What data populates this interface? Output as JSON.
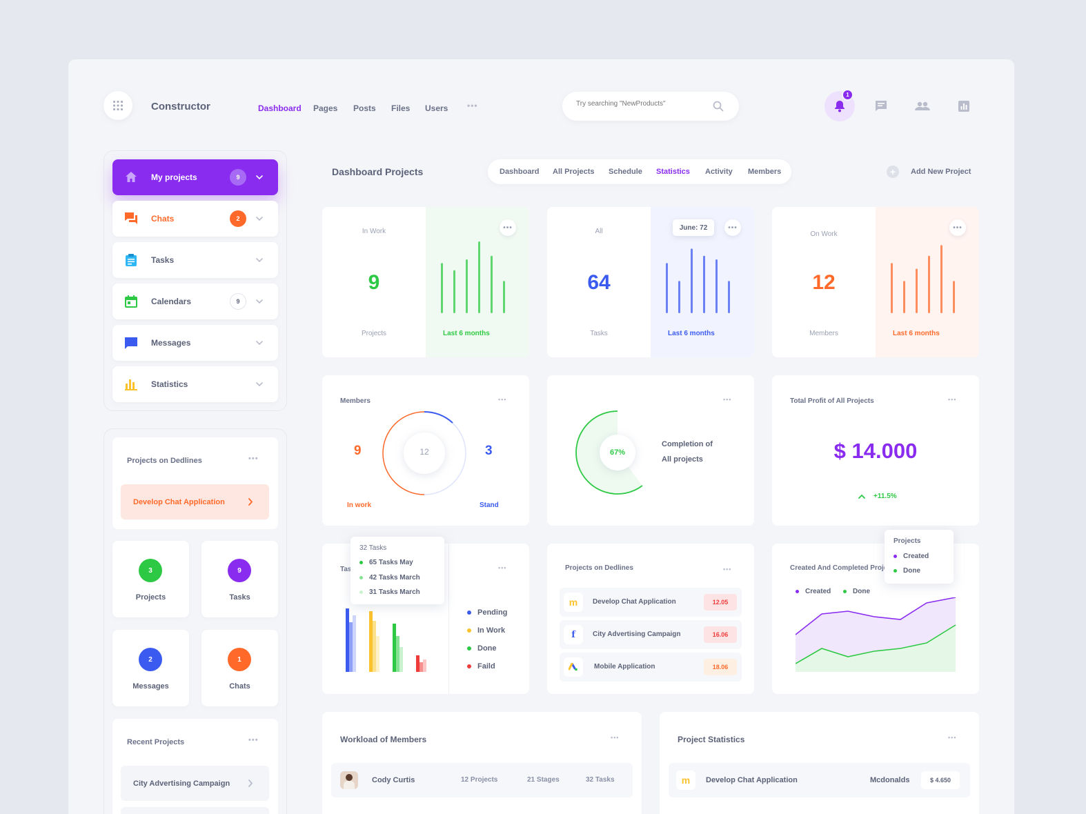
{
  "app": {
    "name": "Constructor"
  },
  "nav": {
    "items": [
      "Dashboard",
      "Pages",
      "Posts",
      "Files",
      "Users"
    ],
    "more": "•••"
  },
  "search": {
    "placeholder": "Try searching \"NewProducts\""
  },
  "notifications": {
    "count": "1"
  },
  "sidebar": {
    "items": [
      {
        "label": "My projects",
        "badge": "9"
      },
      {
        "label": "Chats",
        "badge": "2"
      },
      {
        "label": "Tasks"
      },
      {
        "label": "Calendars",
        "badge": "9"
      },
      {
        "label": "Messages"
      },
      {
        "label": "Statistics"
      }
    ],
    "deadlines": {
      "title": "Projects on Dedlines",
      "item": "Develop Chat Application"
    },
    "counters": [
      {
        "value": "3",
        "label": "Projects",
        "color": "#2ec944"
      },
      {
        "value": "9",
        "label": "Tasks",
        "color": "#8a2cf0"
      },
      {
        "value": "2",
        "label": "Messages",
        "color": "#3b5bf0"
      },
      {
        "value": "1",
        "label": "Chats",
        "color": "#ff6a2b"
      }
    ],
    "recent": {
      "title": "Recent Projects",
      "item": "City Advertising Campaign"
    }
  },
  "header": {
    "title": "Dashboard Projects",
    "tabs": [
      "Dashboard",
      "All Projects",
      "Schedule",
      "Statistics",
      "Activity",
      "Members"
    ],
    "add_label": "Add New Project"
  },
  "stats": [
    {
      "top": "In Work",
      "value": "9",
      "bottom": "Projects",
      "range": "Last 6 months",
      "color": "#2ec944",
      "bars": [
        70,
        60,
        75,
        100,
        80,
        45
      ]
    },
    {
      "top": "All",
      "value": "64",
      "bottom": "Tasks",
      "range": "Last 6 months",
      "color": "#3b5bf0",
      "tooltip": "June: 72",
      "bars": [
        70,
        45,
        90,
        80,
        75,
        45
      ]
    },
    {
      "top": "On Work",
      "value": "12",
      "bottom": "Members",
      "range": "Last 6 months",
      "color": "#ff6a2b",
      "bars": [
        70,
        45,
        62,
        80,
        95,
        45
      ]
    }
  ],
  "members": {
    "title": "Members",
    "left_value": "9",
    "left_label": "In work",
    "center": "12",
    "right_value": "3",
    "right_label": "Stand"
  },
  "completion": {
    "percent": "67%",
    "line1": "Completion of",
    "line2": "All projects",
    "fraction": 0.67
  },
  "profit": {
    "title": "Total Profit of All Projects",
    "value": "$ 14.000",
    "change": "+11.5%"
  },
  "tasks_chart": {
    "title": "Tas",
    "tooltip": {
      "head": "32 Tasks",
      "lines": [
        "65 Tasks May",
        "42 Tasks March",
        "31 Tasks March"
      ]
    },
    "legend": [
      "Pending",
      "In Work",
      "Done",
      "Faild"
    ]
  },
  "deadlines": {
    "title": "Projects on Dedlines",
    "rows": [
      {
        "name": "Develop Chat Application",
        "date": "12.05"
      },
      {
        "name": "City Advertising Campaign",
        "date": "16.06"
      },
      {
        "name": "Mobile Application",
        "date": "18.06"
      }
    ]
  },
  "created_chart": {
    "title": "Created And Completed Proje",
    "legend": [
      "Created",
      "Done"
    ],
    "tooltip": {
      "head": "Projects",
      "items": [
        "Created",
        "Done"
      ]
    }
  },
  "workload": {
    "title": "Workload of Members",
    "row": {
      "name": "Cody Curtis",
      "projects": "12 Projects",
      "stages": "21 Stages",
      "tasks": "32 Tasks"
    }
  },
  "project_stats": {
    "title": "Project Statistics",
    "row": {
      "name": "Develop Chat Application",
      "company": "Mcdonalds",
      "amount": "$ 4.650"
    }
  }
}
